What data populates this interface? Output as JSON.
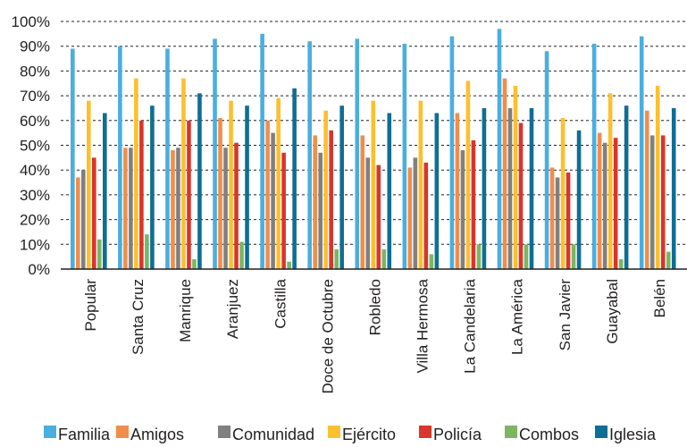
{
  "chart_data": {
    "type": "bar",
    "categories": [
      "Popular",
      "Santa Cruz",
      "Manrique",
      "Aranjuez",
      "Castilla",
      "Doce de Octubre",
      "Robledo",
      "Villa Hermosa",
      "La Candelaria",
      "La América",
      "San Javier",
      "Guayabal",
      "Belén"
    ],
    "series": [
      {
        "name": "Familia",
        "color": "#4aaedf",
        "values": [
          89,
          90,
          89,
          93,
          95,
          92,
          93,
          91,
          94,
          97,
          88,
          91,
          94
        ]
      },
      {
        "name": "Amigos",
        "color": "#f18d4b",
        "values": [
          37,
          49,
          48,
          61,
          60,
          54,
          54,
          41,
          63,
          77,
          41,
          55,
          64
        ]
      },
      {
        "name": "Comunidad",
        "color": "#808080",
        "values": [
          40,
          49,
          49,
          49,
          55,
          47,
          45,
          45,
          48,
          65,
          37,
          51,
          54
        ]
      },
      {
        "name": "Ejército",
        "color": "#fcc02e",
        "values": [
          68,
          77,
          77,
          68,
          69,
          64,
          68,
          68,
          76,
          74,
          61,
          71,
          74
        ]
      },
      {
        "name": "Policía",
        "color": "#d9352b",
        "values": [
          45,
          60,
          60,
          51,
          47,
          56,
          42,
          43,
          52,
          59,
          39,
          53,
          54
        ]
      },
      {
        "name": "Combos",
        "color": "#7bb662",
        "values": [
          12,
          14,
          4,
          11,
          3,
          8,
          8,
          6,
          10,
          10,
          10,
          4,
          7
        ]
      },
      {
        "name": "Iglesia",
        "color": "#0f6e94",
        "values": [
          63,
          66,
          71,
          66,
          73,
          66,
          63,
          63,
          65,
          65,
          56,
          66,
          65
        ]
      }
    ],
    "ylim": [
      0,
      100
    ],
    "yticks": [
      "0%",
      "10%",
      "20%",
      "30%",
      "40%",
      "50%",
      "60%",
      "70%",
      "80%",
      "90%",
      "100%"
    ],
    "grid": true,
    "legend_position": "bottom"
  }
}
